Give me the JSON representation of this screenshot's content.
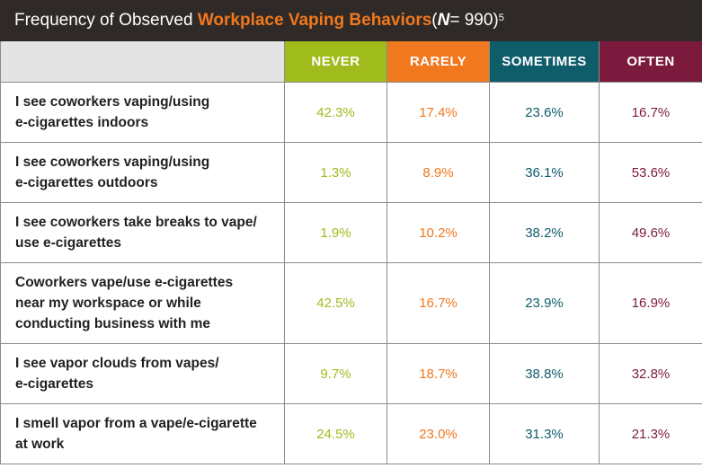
{
  "title": {
    "prefix": "Frequency of Observed ",
    "highlight": "Workplace Vaping Behaviors",
    "suffix_open": " (",
    "n_label": "N",
    "n_value": " = 990)",
    "footnote": "5"
  },
  "colors": {
    "never": "#9fbb1c",
    "rarely": "#f0781e",
    "sometimes": "#0f5c6b",
    "often": "#7c1a3e",
    "title_bar": "#2f2a28",
    "header_corner": "#e4e4e4"
  },
  "chart_data": {
    "type": "table",
    "title": "Frequency of Observed Workplace Vaping Behaviors (N = 990)",
    "columns": [
      "NEVER",
      "RARELY",
      "SOMETIMES",
      "OFTEN"
    ],
    "rows": [
      {
        "label_lines": [
          "I see coworkers vaping/using",
          "e-cigarettes indoors"
        ],
        "values": [
          "42.3%",
          "17.4%",
          "23.6%",
          "16.7%"
        ]
      },
      {
        "label_lines": [
          "I see coworkers vaping/using",
          "e-cigarettes outdoors"
        ],
        "values": [
          "1.3%",
          "8.9%",
          "36.1%",
          "53.6%"
        ]
      },
      {
        "label_lines": [
          "I see coworkers take breaks to vape/",
          "use e-cigarettes"
        ],
        "values": [
          "1.9%",
          "10.2%",
          "38.2%",
          "49.6%"
        ]
      },
      {
        "label_lines": [
          "Coworkers vape/use e-cigarettes",
          "near my workspace or while",
          "conducting business with me"
        ],
        "values": [
          "42.5%",
          "16.7%",
          "23.9%",
          "16.9%"
        ]
      },
      {
        "label_lines": [
          "I see vapor clouds from vapes/",
          "e-cigarettes"
        ],
        "values": [
          "9.7%",
          "18.7%",
          "38.8%",
          "32.8%"
        ]
      },
      {
        "label_lines": [
          "I smell vapor from a vape/e-cigarette",
          "at work"
        ],
        "values": [
          "24.5%",
          "23.0%",
          "31.3%",
          "21.3%"
        ]
      }
    ]
  }
}
